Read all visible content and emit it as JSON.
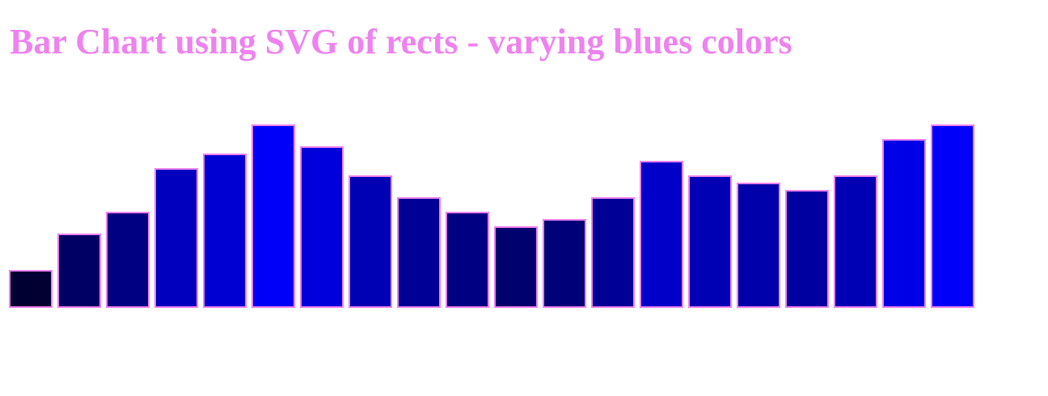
{
  "page": {
    "title": "Bar Chart using SVG of rects - varying blues colors"
  },
  "chart_data": {
    "type": "bar",
    "title": "",
    "xlabel": "",
    "ylabel": "",
    "values": [
      5,
      10,
      13,
      19,
      21,
      25,
      22,
      18,
      15,
      13,
      11,
      12,
      15,
      20,
      18,
      17,
      16,
      18,
      23,
      25
    ],
    "ylim": [
      0,
      25
    ],
    "grid": false,
    "legend": "none",
    "bar_stroke_color": "#ee82ee",
    "fill_color_rule": "blue channel = value x 10"
  }
}
